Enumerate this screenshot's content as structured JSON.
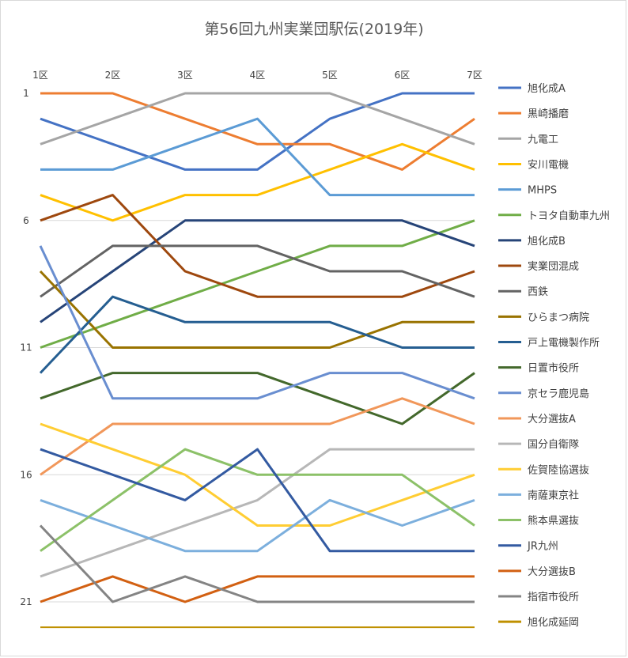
{
  "chart_data": {
    "type": "line",
    "title": "第56回九州実業団駅伝(2019年)",
    "categories": [
      "1区",
      "2区",
      "3区",
      "4区",
      "5区",
      "6区",
      "7区"
    ],
    "y_ticks": [
      "1",
      "6",
      "11",
      "16",
      "21"
    ],
    "y_reversed": true,
    "ylim": [
      1,
      22
    ],
    "grid": "horizontal",
    "legend_position": "right",
    "series": [
      {
        "name": "旭化成A",
        "color": "#4472C4",
        "values": [
          2,
          3,
          4,
          4,
          2,
          1,
          1
        ]
      },
      {
        "name": "黒崎播磨",
        "color": "#ED7D31",
        "values": [
          1,
          1,
          2,
          3,
          3,
          4,
          2
        ]
      },
      {
        "name": "九電工",
        "color": "#A5A5A5",
        "values": [
          3,
          2,
          1,
          1,
          1,
          2,
          3
        ]
      },
      {
        "name": "安川電機",
        "color": "#FFC000",
        "values": [
          5,
          6,
          5,
          5,
          4,
          3,
          4
        ]
      },
      {
        "name": "MHPS",
        "color": "#5B9BD5",
        "values": [
          4,
          4,
          3,
          2,
          5,
          5,
          5
        ]
      },
      {
        "name": "トヨタ自動車九州",
        "color": "#70AD47",
        "values": [
          11,
          10,
          9,
          8,
          7,
          7,
          6
        ]
      },
      {
        "name": "旭化成B",
        "color": "#264478",
        "values": [
          10,
          8,
          6,
          6,
          6,
          6,
          7
        ]
      },
      {
        "name": "実業団混成",
        "color": "#9E480E",
        "values": [
          6,
          5,
          8,
          9,
          9,
          9,
          8
        ]
      },
      {
        "name": "西鉄",
        "color": "#636363",
        "values": [
          9,
          7,
          7,
          7,
          8,
          8,
          9
        ]
      },
      {
        "name": "ひらまつ病院",
        "color": "#997300",
        "values": [
          8,
          11,
          11,
          11,
          11,
          10,
          10
        ]
      },
      {
        "name": "戸上電機製作所",
        "color": "#255E91",
        "values": [
          12,
          9,
          10,
          10,
          10,
          11,
          11
        ]
      },
      {
        "name": "日置市役所",
        "color": "#43682B",
        "values": [
          13,
          12,
          12,
          12,
          13,
          14,
          12
        ]
      },
      {
        "name": "京セラ鹿児島",
        "color": "#698ED0",
        "values": [
          7,
          13,
          13,
          13,
          12,
          12,
          13
        ]
      },
      {
        "name": "大分選抜A",
        "color": "#F1975A",
        "values": [
          16,
          14,
          14,
          14,
          14,
          13,
          14
        ]
      },
      {
        "name": "国分自衛隊",
        "color": "#B7B7B7",
        "values": [
          20,
          19,
          18,
          17,
          15,
          15,
          15
        ]
      },
      {
        "name": "佐賀陸協選抜",
        "color": "#FFCD33",
        "values": [
          14,
          15,
          16,
          18,
          18,
          17,
          16
        ]
      },
      {
        "name": "南薩東京社",
        "color": "#7CAFDD",
        "values": [
          17,
          18,
          19,
          19,
          17,
          18,
          17
        ]
      },
      {
        "name": "熊本県選抜",
        "color": "#8CC168",
        "values": [
          19,
          17,
          15,
          16,
          16,
          16,
          18
        ]
      },
      {
        "name": "JR九州",
        "color": "#335AA1",
        "values": [
          15,
          16,
          17,
          15,
          19,
          19,
          19
        ]
      },
      {
        "name": "大分選抜B",
        "color": "#D26012",
        "values": [
          21,
          20,
          21,
          20,
          20,
          20,
          20
        ]
      },
      {
        "name": "指宿市役所",
        "color": "#848484",
        "values": [
          18,
          21,
          20,
          21,
          21,
          21,
          21
        ]
      },
      {
        "name": "旭化成延岡",
        "color": "#BF9000",
        "values": [
          22,
          22,
          22,
          22,
          22,
          22,
          22
        ]
      }
    ]
  }
}
